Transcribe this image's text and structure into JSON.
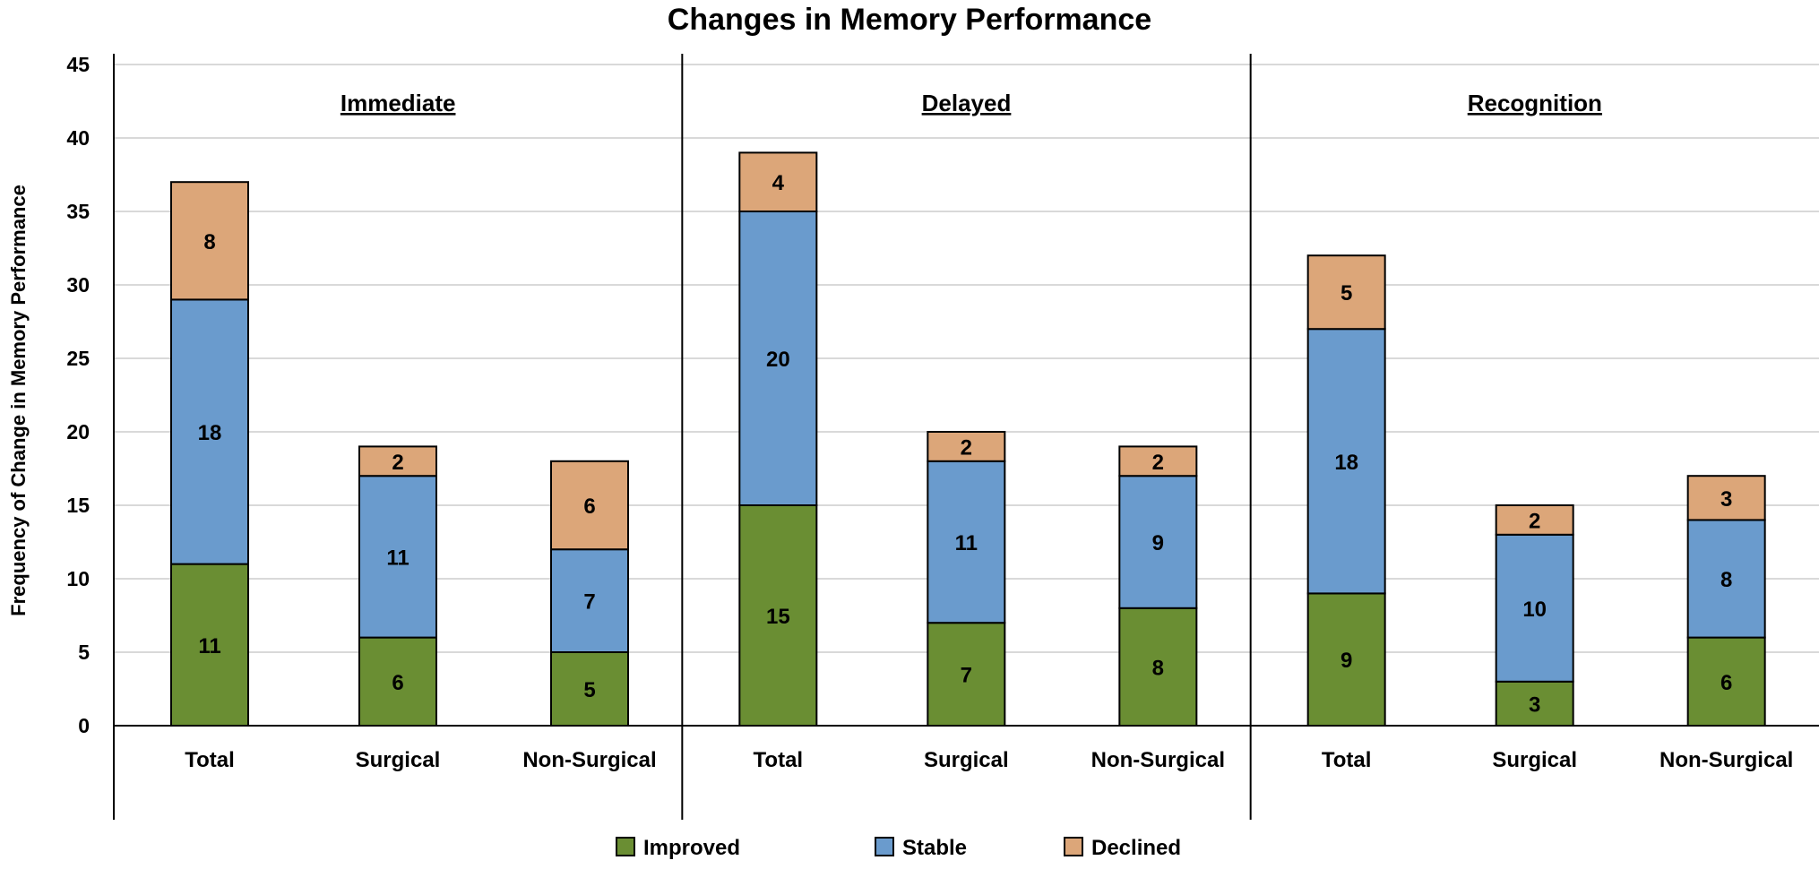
{
  "chart_data": {
    "type": "bar",
    "stacked": true,
    "title": "Changes in Memory Performance",
    "ylabel": "Frequency of Change in Memory Performance",
    "ylim": [
      0,
      45
    ],
    "ytick_step": 5,
    "grid": true,
    "legend_position": "bottom",
    "groups": [
      {
        "label": "Immediate",
        "categories": [
          "Total",
          "Surgical",
          "Non-Surgical"
        ]
      },
      {
        "label": "Delayed",
        "categories": [
          "Total",
          "Surgical",
          "Non-Surgical"
        ]
      },
      {
        "label": "Recognition",
        "categories": [
          "Total",
          "Surgical",
          "Non-Surgical"
        ]
      }
    ],
    "series": [
      {
        "name": "Improved",
        "color": "#6a8e33",
        "values": [
          11,
          6,
          5,
          15,
          7,
          8,
          9,
          3,
          6
        ]
      },
      {
        "name": "Stable",
        "color": "#6a9bcd",
        "values": [
          18,
          11,
          7,
          20,
          11,
          9,
          18,
          10,
          8
        ]
      },
      {
        "name": "Declined",
        "color": "#dca679",
        "values": [
          8,
          2,
          6,
          4,
          2,
          2,
          5,
          2,
          3
        ]
      }
    ]
  }
}
